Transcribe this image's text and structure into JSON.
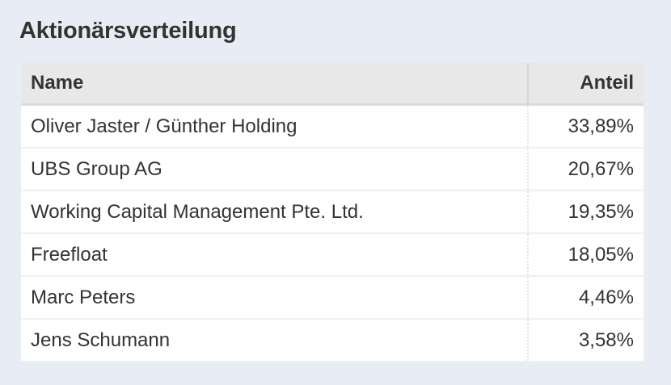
{
  "title": "Aktionärsverteilung",
  "table": {
    "headers": {
      "name": "Name",
      "share": "Anteil"
    },
    "rows": [
      {
        "name": "Oliver Jaster / Günther Holding",
        "share": "33,89%"
      },
      {
        "name": "UBS Group AG",
        "share": "20,67%"
      },
      {
        "name": "Working Capital Management Pte. Ltd.",
        "share": "19,35%"
      },
      {
        "name": "Freefloat",
        "share": "18,05%"
      },
      {
        "name": "Marc Peters",
        "share": "4,46%"
      },
      {
        "name": "Jens Schumann",
        "share": "3,58%"
      }
    ]
  }
}
